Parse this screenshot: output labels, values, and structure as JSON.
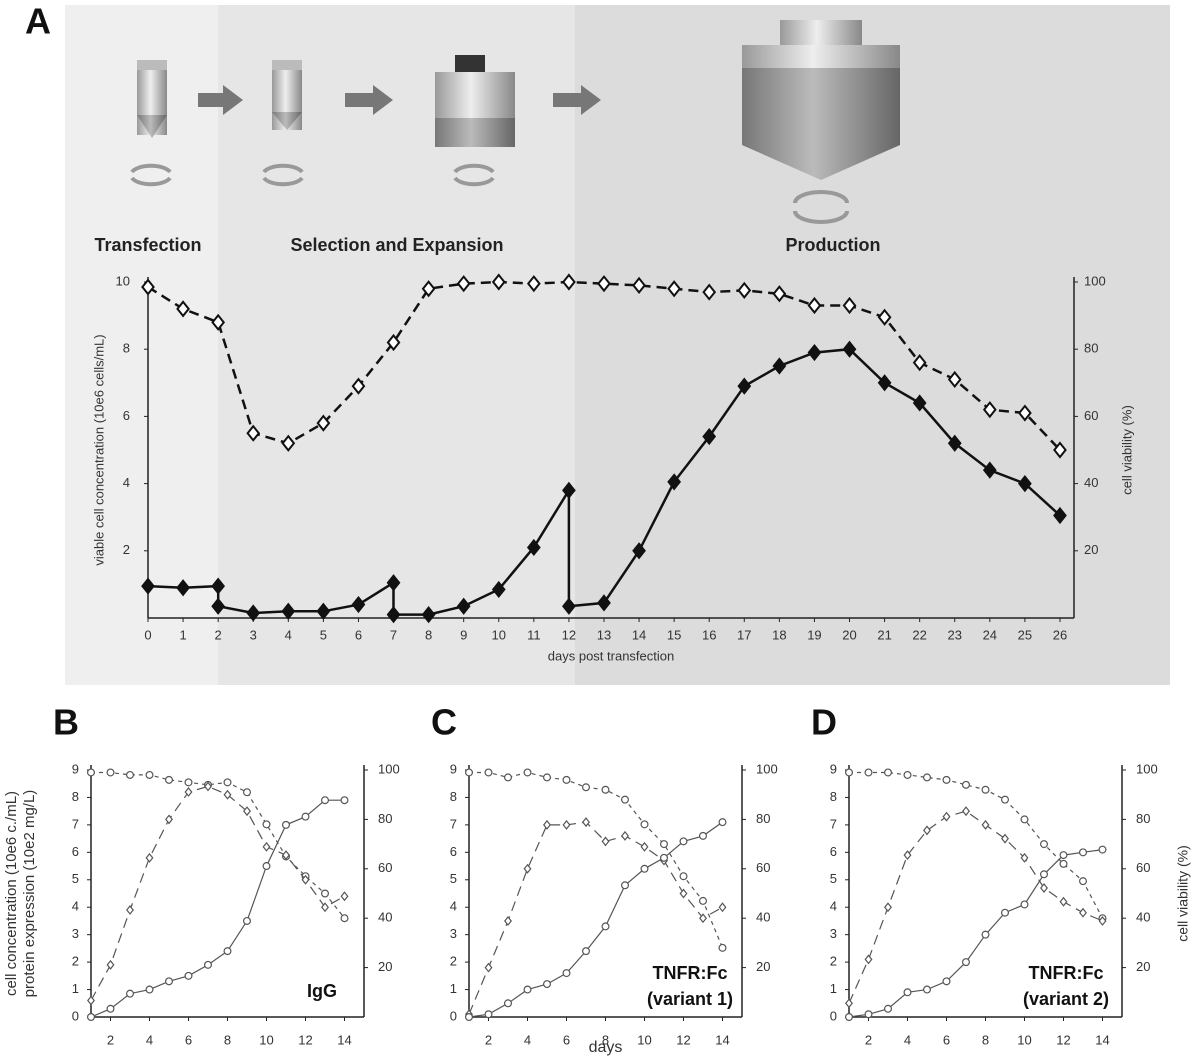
{
  "chart_data": [
    {
      "type": "line",
      "panel_label": "A",
      "stage_labels": [
        "Transfection",
        "Selection and Expansion",
        "Production"
      ],
      "xlabel": "days post transfection",
      "ylabel": "viable cell concentration (10e6 cells/mL)",
      "y2label": "cell viability (%)",
      "xlim": [
        0,
        26.4
      ],
      "xticks": [
        0,
        1,
        2,
        3,
        4,
        5,
        6,
        7,
        8,
        9,
        10,
        11,
        12,
        13,
        14,
        15,
        16,
        17,
        18,
        19,
        20,
        21,
        22,
        23,
        24,
        25,
        26
      ],
      "ylim": [
        0,
        10
      ],
      "yticks": [
        2,
        4,
        6,
        8,
        10
      ],
      "y2lim": [
        0,
        100
      ],
      "y2ticks": [
        20,
        40,
        60,
        80,
        100
      ],
      "series": [
        {
          "color": "#111111",
          "marker": "diamond-filled",
          "dash": "solid",
          "x": [
            0,
            1,
            2,
            2,
            3,
            4,
            5,
            6,
            7,
            7,
            8,
            9,
            10,
            11,
            12,
            12,
            13,
            14,
            15,
            16,
            17,
            18,
            19,
            20,
            21,
            22,
            23,
            24,
            25,
            26
          ],
          "values": [
            0.95,
            0.9,
            0.95,
            0.35,
            0.15,
            0.2,
            0.2,
            0.4,
            1.05,
            0.1,
            0.1,
            0.35,
            0.85,
            2.1,
            3.8,
            0.35,
            0.45,
            2.0,
            4.05,
            5.4,
            6.9,
            7.5,
            7.9,
            8.0,
            7.0,
            6.4,
            5.2,
            4.4,
            4.0,
            3.05
          ]
        },
        {
          "color": "#111111",
          "marker": "diamond-open",
          "dash": "long",
          "axis": "y2",
          "x": [
            0,
            1,
            2,
            3,
            4,
            5,
            6,
            7,
            8,
            9,
            10,
            11,
            12,
            13,
            14,
            15,
            16,
            17,
            18,
            19,
            20,
            21,
            22,
            23,
            24,
            25,
            26
          ],
          "values": [
            98.5,
            92,
            88,
            55,
            52,
            58,
            69,
            82,
            98,
            99.5,
            100,
            99.5,
            100,
            99.5,
            99,
            98,
            97,
            97.5,
            96.5,
            93,
            93,
            89.5,
            76,
            71,
            62,
            61,
            50
          ]
        }
      ]
    },
    {
      "type": "line",
      "panel_label": "B",
      "annotation_lines": [
        "IgG"
      ],
      "ylabel": [
        "cell concentration (10e6 c./mL)",
        "protein expression (10e2 mg/L)"
      ],
      "x": [
        1,
        2,
        3,
        4,
        5,
        6,
        7,
        8,
        9,
        10,
        11,
        12,
        13,
        14
      ],
      "xlim": [
        1,
        15
      ],
      "xticks": [
        2,
        4,
        6,
        8,
        10,
        12,
        14
      ],
      "ylim": [
        0,
        9
      ],
      "yticks": [
        0,
        1,
        2,
        3,
        4,
        5,
        6,
        7,
        8,
        9
      ],
      "y2lim": [
        0,
        100
      ],
      "y2ticks": [
        20,
        40,
        60,
        80,
        100
      ],
      "series": [
        {
          "color": "#555555",
          "marker": "circle-open",
          "dash": "short",
          "axis": "y2",
          "values": [
            99,
            99,
            98,
            98,
            96,
            95,
            94,
            95,
            91,
            78,
            65,
            57,
            50,
            40
          ]
        },
        {
          "color": "#555555",
          "marker": "diamond-open",
          "dash": "long",
          "values": [
            0.6,
            1.9,
            3.9,
            5.8,
            7.2,
            8.2,
            8.4,
            8.1,
            7.5,
            6.2,
            5.9,
            5.0,
            4.0,
            4.4
          ]
        },
        {
          "color": "#555555",
          "marker": "circle-open",
          "dash": "solid",
          "values": [
            0,
            0.3,
            0.85,
            1.0,
            1.3,
            1.5,
            1.9,
            2.4,
            3.5,
            5.5,
            7.0,
            7.3,
            7.9,
            7.9
          ]
        }
      ]
    },
    {
      "type": "line",
      "panel_label": "C",
      "annotation_lines": [
        "TNFR:Fc",
        "(variant 1)"
      ],
      "xlabel": "days",
      "x": [
        1,
        2,
        3,
        4,
        5,
        6,
        7,
        8,
        9,
        10,
        11,
        12,
        13,
        14
      ],
      "xlim": [
        1,
        15
      ],
      "xticks": [
        2,
        4,
        6,
        8,
        10,
        12,
        14
      ],
      "ylim": [
        0,
        9
      ],
      "yticks": [
        0,
        1,
        2,
        3,
        4,
        5,
        6,
        7,
        8,
        9
      ],
      "y2lim": [
        0,
        100
      ],
      "y2ticks": [
        20,
        40,
        60,
        80,
        100
      ],
      "series": [
        {
          "color": "#555555",
          "marker": "circle-open",
          "dash": "short",
          "axis": "y2",
          "values": [
            99,
            99,
            97,
            99,
            97,
            96,
            93,
            92,
            88,
            78,
            70,
            57,
            47,
            28
          ]
        },
        {
          "color": "#555555",
          "marker": "diamond-open",
          "dash": "long",
          "values": [
            0.1,
            1.8,
            3.5,
            5.4,
            7.0,
            7.0,
            7.1,
            6.4,
            6.6,
            6.2,
            5.7,
            4.5,
            3.6,
            4.0
          ]
        },
        {
          "color": "#555555",
          "marker": "circle-open",
          "dash": "solid",
          "values": [
            0,
            0.1,
            0.5,
            1.0,
            1.2,
            1.6,
            2.4,
            3.3,
            4.8,
            5.4,
            5.8,
            6.4,
            6.6,
            7.1
          ]
        }
      ]
    },
    {
      "type": "line",
      "panel_label": "D",
      "annotation_lines": [
        "TNFR:Fc",
        "(variant 2)"
      ],
      "y2label": "cell viability (%)",
      "x": [
        1,
        2,
        3,
        4,
        5,
        6,
        7,
        8,
        9,
        10,
        11,
        12,
        13,
        14
      ],
      "xlim": [
        1,
        15
      ],
      "xticks": [
        2,
        4,
        6,
        8,
        10,
        12,
        14
      ],
      "ylim": [
        0,
        9
      ],
      "yticks": [
        0,
        1,
        2,
        3,
        4,
        5,
        6,
        7,
        8,
        9
      ],
      "y2lim": [
        0,
        100
      ],
      "y2ticks": [
        20,
        40,
        60,
        80,
        100
      ],
      "series": [
        {
          "color": "#555555",
          "marker": "circle-open",
          "dash": "short",
          "axis": "y2",
          "values": [
            99,
            99,
            99,
            98,
            97,
            96,
            94,
            92,
            88,
            80,
            70,
            62,
            55,
            40
          ]
        },
        {
          "color": "#555555",
          "marker": "diamond-open",
          "dash": "long",
          "values": [
            0.5,
            2.1,
            4.0,
            5.9,
            6.8,
            7.3,
            7.5,
            7.0,
            6.5,
            5.8,
            4.7,
            4.2,
            3.8,
            3.5
          ]
        },
        {
          "color": "#555555",
          "marker": "circle-open",
          "dash": "solid",
          "values": [
            0,
            0.1,
            0.3,
            0.9,
            1.0,
            1.3,
            2.0,
            3.0,
            3.8,
            4.1,
            5.2,
            5.9,
            6.0,
            6.1
          ]
        }
      ]
    }
  ]
}
